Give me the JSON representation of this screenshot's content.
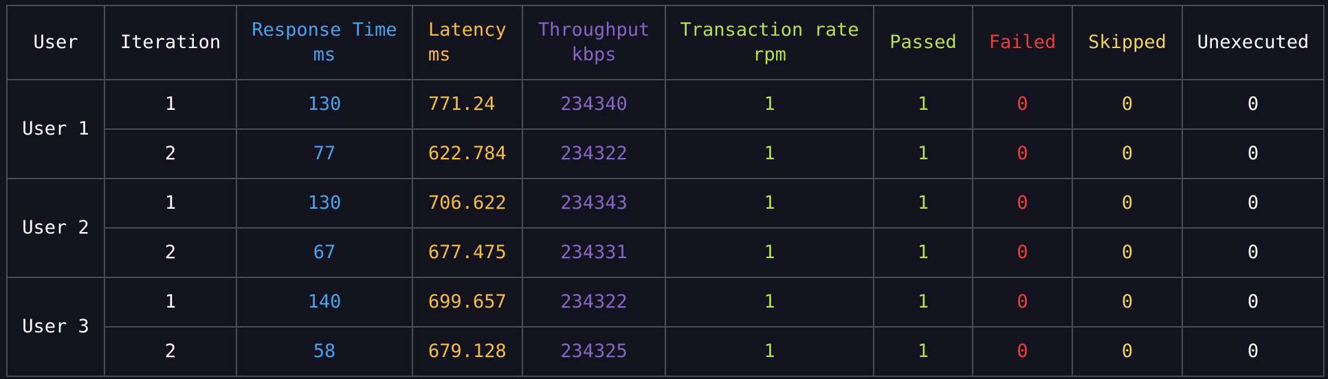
{
  "headers": {
    "user": "User",
    "iteration": "Iteration",
    "response_time": {
      "label": "Response Time",
      "unit": "ms"
    },
    "latency": {
      "label": "Latency",
      "unit": "ms"
    },
    "throughput": {
      "label": "Throughput",
      "unit": "kbps"
    },
    "transaction_rate": {
      "label": "Transaction rate",
      "unit": "rpm"
    },
    "passed": "Passed",
    "failed": "Failed",
    "skipped": "Skipped",
    "unexecuted": "Unexecuted"
  },
  "users": [
    {
      "name": "User 1",
      "rows": [
        {
          "iteration": "1",
          "response_time": "130",
          "latency": "771.24",
          "throughput": "234340",
          "transaction_rate": "1",
          "passed": "1",
          "failed": "0",
          "skipped": "0",
          "unexecuted": "0"
        },
        {
          "iteration": "2",
          "response_time": "77",
          "latency": "622.784",
          "throughput": "234322",
          "transaction_rate": "1",
          "passed": "1",
          "failed": "0",
          "skipped": "0",
          "unexecuted": "0"
        }
      ]
    },
    {
      "name": "User 2",
      "rows": [
        {
          "iteration": "1",
          "response_time": "130",
          "latency": "706.622",
          "throughput": "234343",
          "transaction_rate": "1",
          "passed": "1",
          "failed": "0",
          "skipped": "0",
          "unexecuted": "0"
        },
        {
          "iteration": "2",
          "response_time": "67",
          "latency": "677.475",
          "throughput": "234331",
          "transaction_rate": "1",
          "passed": "1",
          "failed": "0",
          "skipped": "0",
          "unexecuted": "0"
        }
      ]
    },
    {
      "name": "User 3",
      "rows": [
        {
          "iteration": "1",
          "response_time": "140",
          "latency": "699.657",
          "throughput": "234322",
          "transaction_rate": "1",
          "passed": "1",
          "failed": "0",
          "skipped": "0",
          "unexecuted": "0"
        },
        {
          "iteration": "2",
          "response_time": "58",
          "latency": "679.128",
          "throughput": "234325",
          "transaction_rate": "1",
          "passed": "1",
          "failed": "0",
          "skipped": "0",
          "unexecuted": "0"
        }
      ]
    }
  ],
  "colors": {
    "background": "#12131f",
    "grid": "#4a4c55",
    "default": "#ffffff",
    "response_time": "#4aa3ea",
    "latency": "#f5bd41",
    "throughput": "#8865c4",
    "transaction_rate": "#b6e04f",
    "passed": "#b6e04f",
    "failed": "#ee3d3a",
    "skipped": "#f1d25c",
    "unexecuted": "#ffffff"
  }
}
